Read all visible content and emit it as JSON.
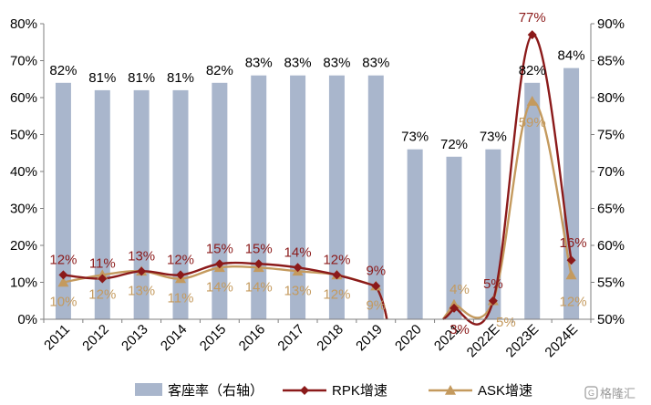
{
  "chart_data": {
    "type": "bar+line",
    "categories": [
      "2011",
      "2012",
      "2013",
      "2014",
      "2015",
      "2016",
      "2017",
      "2018",
      "2019",
      "2020",
      "2021",
      "2022E",
      "2023E",
      "2024E"
    ],
    "y_left": {
      "min": 0,
      "max": 80,
      "step": 10,
      "unit": "%"
    },
    "y_right": {
      "min": 50,
      "max": 90,
      "step": 5,
      "unit": "%"
    },
    "series": [
      {
        "name": "客座率（右轴）",
        "kind": "bar",
        "axis": "right",
        "color": "#A9B6CC",
        "values": [
          82,
          81,
          81,
          81,
          82,
          83,
          83,
          83,
          83,
          73,
          72,
          73,
          82,
          84
        ],
        "labels": [
          "82%",
          "81%",
          "81%",
          "81%",
          "82%",
          "83%",
          "83%",
          "83%",
          "83%",
          "73%",
          "72%",
          "73%",
          "82%",
          "84%"
        ]
      },
      {
        "name": "RPK增速",
        "kind": "line",
        "axis": "left",
        "color": "#8B1A1A",
        "marker": "diamond",
        "values": [
          12,
          11,
          13,
          12,
          15,
          15,
          14,
          12,
          9,
          null,
          3,
          5,
          77,
          16
        ],
        "labels": [
          "12%",
          "11%",
          "13%",
          "12%",
          "15%",
          "15%",
          "14%",
          "12%",
          "9%",
          "",
          "3%",
          "5%",
          "77%",
          "16%"
        ]
      },
      {
        "name": "ASK增速",
        "kind": "line",
        "axis": "left",
        "color": "#C49A5E",
        "marker": "triangle",
        "values": [
          10,
          12,
          13,
          11,
          14,
          14,
          13,
          12,
          9,
          null,
          4,
          5,
          59,
          12
        ],
        "labels": [
          "10%",
          "12%",
          "13%",
          "11%",
          "14%",
          "14%",
          "13%",
          "12%",
          "9%",
          "",
          "4%",
          "5%",
          "59%",
          "12%"
        ]
      }
    ],
    "legend": {
      "position": "bottom",
      "entries": [
        "客座率（右轴）",
        "RPK增速",
        "ASK增速"
      ]
    },
    "grid": false
  },
  "watermark": "格隆汇"
}
